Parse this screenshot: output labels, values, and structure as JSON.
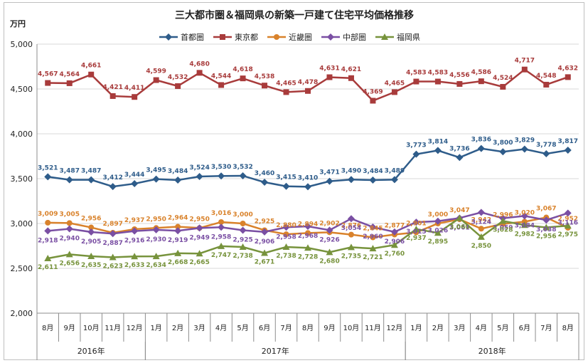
{
  "chart_data": {
    "type": "line",
    "title": "三大都市圏＆福岡県の新築一戸建て住宅平均価格推移",
    "ylabel": "万円",
    "ylim": [
      2000,
      5000
    ],
    "yticks": [
      "2,000",
      "2,500",
      "3,000",
      "3,500",
      "4,000",
      "4,500",
      "5,000"
    ],
    "grid": true,
    "legend_position": "top",
    "categories": [
      "8月",
      "9月",
      "10月",
      "11月",
      "12月",
      "1月",
      "2月",
      "3月",
      "4月",
      "5月",
      "6月",
      "7月",
      "8月",
      "9月",
      "10月",
      "11月",
      "12月",
      "1月",
      "2月",
      "3月",
      "4月",
      "5月",
      "6月",
      "7月",
      "8月"
    ],
    "years": [
      {
        "label": "2016年",
        "start": 0,
        "end": 4
      },
      {
        "label": "2017年",
        "start": 5,
        "end": 16
      },
      {
        "label": "2018年",
        "start": 17,
        "end": 24
      }
    ],
    "series": [
      {
        "name": "首都圏",
        "color": "#2e5c8a",
        "marker": "diamond",
        "values": [
          3521,
          3487,
          3487,
          3412,
          3444,
          3495,
          3484,
          3524,
          3530,
          3532,
          3460,
          3415,
          3410,
          3471,
          3490,
          3484,
          3489,
          3773,
          3814,
          3736,
          3836,
          3800,
          3829,
          3778,
          3817
        ],
        "labels": [
          "3,521",
          "3,487",
          "3,487",
          "3,412",
          "3,444",
          "3,495",
          "3,484",
          "3,524",
          "3,530",
          "3,532",
          "3,460",
          "3,415",
          "3,410",
          "3,471",
          "3,490",
          "3,484",
          "3,489",
          "3,773",
          "3,814",
          "3,736",
          "3,836",
          "3,800",
          "3,829",
          "3,778",
          "3,817"
        ]
      },
      {
        "name": "東京都",
        "color": "#a83b3b",
        "marker": "square",
        "values": [
          4567,
          4564,
          4661,
          4421,
          4411,
          4599,
          4532,
          4680,
          4544,
          4618,
          4538,
          4465,
          4478,
          4631,
          4621,
          4369,
          4465,
          4583,
          4583,
          4556,
          4586,
          4524,
          4717,
          4548,
          4632
        ],
        "labels": [
          "4,567",
          "4,564",
          "4,661",
          "4,421",
          "4,411",
          "4,599",
          "4,532",
          "4,680",
          "4,544",
          "4,618",
          "4,538",
          "4,465",
          "4,478",
          "4,631",
          "4,621",
          "4,369",
          "4,465",
          "4,583",
          "4,583",
          "4,556",
          "4,586",
          "4,524",
          "4,717",
          "4,548",
          "4,632"
        ]
      },
      {
        "name": "近畿圏",
        "color": "#d9822b",
        "marker": "circle",
        "values": [
          3009,
          3005,
          2956,
          2897,
          2937,
          2950,
          2964,
          2950,
          3016,
          3000,
          2925,
          2880,
          2894,
          2902,
          2876,
          2845,
          2877,
          2901,
          3000,
          3047,
          2942,
          2996,
          3020,
          3067,
          2952
        ],
        "labels": [
          "3,009",
          "3,005",
          "2,956",
          "2,897",
          "2,937",
          "2,950",
          "2,964",
          "2,950",
          "3,016",
          "3,000",
          "2,925",
          "2,880",
          "2,894",
          "2,902",
          "2,876",
          "2,845",
          "2,877",
          "2,901",
          "3,000",
          "3,047",
          "2,942",
          "2,996",
          "3,020",
          "3,067",
          "2,952"
        ]
      },
      {
        "name": "中部圏",
        "color": "#7a4fa3",
        "marker": "x",
        "values": [
          2918,
          2940,
          2905,
          2887,
          2916,
          2930,
          2919,
          2949,
          2958,
          2925,
          2906,
          2958,
          2968,
          2926,
          3054,
          2960,
          2906,
          3015,
          3026,
          3061,
          3124,
          3059,
          3084,
          3038,
          3116
        ],
        "labels": [
          "2,918",
          "2,940",
          "2,905",
          "2,887",
          "2,916",
          "2,930",
          "2,919",
          "2,949",
          "2,958",
          "2,925",
          "2,906",
          "2,958",
          "2,968",
          "2,926",
          "3,054",
          "2,960",
          "2,906",
          "3,015",
          "3,026",
          "3,061",
          "3,124",
          "3,059",
          "3,084",
          "3,038",
          "3,116"
        ]
      },
      {
        "name": "福岡県",
        "color": "#77933c",
        "marker": "triangle",
        "values": [
          2611,
          2656,
          2635,
          2623,
          2633,
          2634,
          2668,
          2665,
          2747,
          2738,
          2671,
          2738,
          2728,
          2680,
          2735,
          2721,
          2760,
          2937,
          2895,
          3060,
          2850,
          3028,
          2982,
          2956,
          2975
        ],
        "labels": [
          "2,611",
          "2,656",
          "2,635",
          "2,623",
          "2,633",
          "2,634",
          "2,668",
          "2,665",
          "2,747",
          "2,738",
          "2,671",
          "2,738",
          "2,728",
          "2,680",
          "2,735",
          "2,721",
          "2,760",
          "2,937",
          "2,895",
          "3,060",
          "2,850",
          "3,028",
          "2,982",
          "2,956",
          "2,975"
        ]
      }
    ]
  }
}
